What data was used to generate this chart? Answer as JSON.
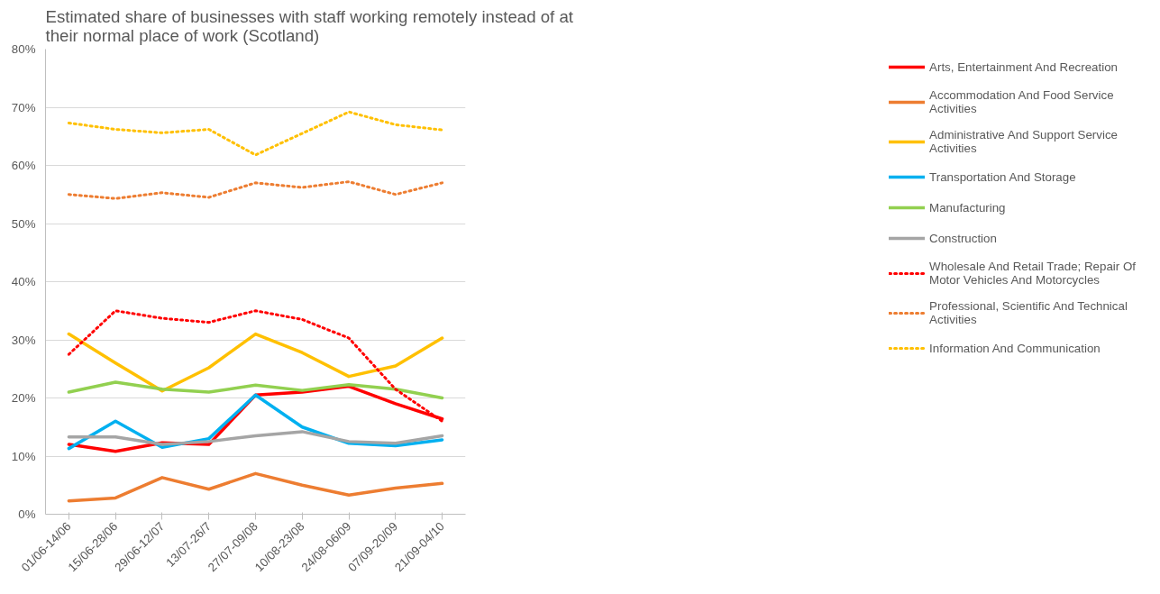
{
  "chart_data": {
    "type": "line",
    "title": "Estimated share of businesses with staff working remotely instead of at their normal place of work (Scotland)",
    "categories": [
      "01/06-14/06",
      "15/06-28/06",
      "29/06-12/07",
      "13/07-26/7",
      "27/07-09/08",
      "10/08-23/08",
      "24/08-06/09",
      "07/09-20/09",
      "21/09-04/10"
    ],
    "series": [
      {
        "name": "Arts, Entertainment And Recreation",
        "color": "#ff0000",
        "line_style": "solid",
        "values": [
          12,
          10.8,
          12.3,
          12,
          20.5,
          21,
          22,
          19,
          16.4
        ]
      },
      {
        "name": "Accommodation And Food Service Activities",
        "color": "#ed7d31",
        "line_style": "solid",
        "values": [
          2.3,
          2.8,
          6.3,
          4.3,
          7,
          5,
          3.3,
          4.5,
          5.3
        ]
      },
      {
        "name": "Administrative And Support Service Activities",
        "color": "#ffc000",
        "line_style": "solid",
        "values": [
          31,
          26,
          21.2,
          25.2,
          31,
          27.8,
          23.7,
          25.5,
          30.3
        ]
      },
      {
        "name": "Transportation And Storage",
        "color": "#00b0f0",
        "line_style": "solid",
        "values": [
          11.3,
          16,
          11.5,
          13,
          20.5,
          15,
          12.2,
          11.8,
          12.8
        ]
      },
      {
        "name": "Manufacturing",
        "color": "#92d050",
        "line_style": "solid",
        "values": [
          21,
          22.7,
          21.5,
          21,
          22.2,
          21.3,
          22.3,
          21.5,
          20
        ]
      },
      {
        "name": "Construction",
        "color": "#a5a5a5",
        "line_style": "solid",
        "values": [
          13.3,
          13.3,
          12,
          12.5,
          13.5,
          14.2,
          12.5,
          12.2,
          13.5
        ]
      },
      {
        "name": "Wholesale And Retail Trade; Repair Of Motor Vehicles And Motorcycles",
        "color": "#ff0000",
        "line_style": "dotted",
        "values": [
          27.5,
          35,
          33.7,
          33,
          35,
          33.5,
          30.3,
          21.5,
          16
        ]
      },
      {
        "name": "Professional, Scientific And Technical Activities",
        "color": "#ed7d31",
        "line_style": "dotted",
        "values": [
          55,
          54.3,
          55.3,
          54.5,
          57,
          56.2,
          57.2,
          55,
          57
        ]
      },
      {
        "name": "Information And Communication",
        "color": "#ffc000",
        "line_style": "dotted",
        "values": [
          67.3,
          66.2,
          65.6,
          66.2,
          61.8,
          65.5,
          69.2,
          67,
          66.1
        ]
      }
    ],
    "ylim": [
      0,
      80
    ],
    "yticks": [
      {
        "value": 0,
        "label": "0%"
      },
      {
        "value": 10,
        "label": "10%"
      },
      {
        "value": 20,
        "label": "20%"
      },
      {
        "value": 30,
        "label": "30%"
      },
      {
        "value": 40,
        "label": "40%"
      },
      {
        "value": 50,
        "label": "50%"
      },
      {
        "value": 60,
        "label": "60%"
      },
      {
        "value": 70,
        "label": "70%"
      },
      {
        "value": 80,
        "label": "80%"
      }
    ],
    "grid": "y",
    "legend": "right",
    "marker": "none"
  }
}
